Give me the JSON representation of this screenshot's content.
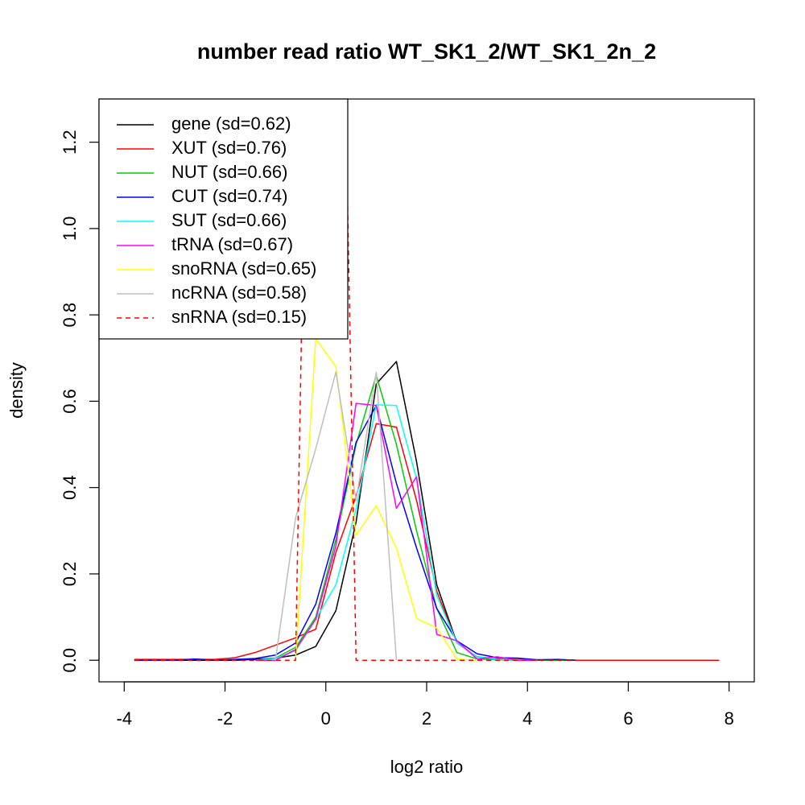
{
  "chart_data": {
    "type": "line",
    "title": "number read ratio WT_SK1_2/WT_SK1_2n_2",
    "xlabel": "log2 ratio",
    "ylabel": "density",
    "xlim": [
      -4.5,
      8.5
    ],
    "ylim": [
      -0.05,
      1.3
    ],
    "xticks": [
      -4,
      -2,
      0,
      2,
      4,
      6,
      8
    ],
    "yticks": [
      0.0,
      0.2,
      0.4,
      0.6,
      0.8,
      1.0,
      1.2
    ],
    "xtick_labels": [
      "-4",
      "-2",
      "0",
      "2",
      "4",
      "6",
      "8"
    ],
    "ytick_labels": [
      "0.0",
      "0.2",
      "0.4",
      "0.6",
      "0.8",
      "1.0",
      "1.2"
    ],
    "grid": false,
    "legend_position": "top-left",
    "series": [
      {
        "name": "gene (sd=0.62)",
        "color": "#000000",
        "dash": false,
        "x": [
          -3.8,
          -3.4,
          -3.0,
          -2.6,
          -2.2,
          -1.8,
          -1.4,
          -1.0,
          -0.6,
          -0.2,
          0.2,
          0.6,
          1.0,
          1.4,
          1.8,
          2.2,
          2.6,
          3.0,
          3.4,
          3.8,
          4.2,
          4.6,
          5.0,
          5.4,
          5.8,
          6.2,
          6.6,
          7.0,
          7.4,
          7.8
        ],
        "y": [
          0.0,
          0.0,
          0.0,
          0.0,
          0.0,
          0.0,
          0.002,
          0.005,
          0.012,
          0.032,
          0.115,
          0.32,
          0.64,
          0.692,
          0.46,
          0.175,
          0.04,
          0.008,
          0.002,
          0.001,
          0.0,
          0.0,
          0.0,
          0.0,
          0.0,
          0.0,
          0.0,
          0.0,
          0.0,
          0.0
        ]
      },
      {
        "name": "XUT (sd=0.76)",
        "color": "#ff0000",
        "dash": false,
        "x": [
          -3.8,
          -3.4,
          -3.0,
          -2.6,
          -2.2,
          -1.8,
          -1.4,
          -1.0,
          -0.6,
          -0.2,
          0.2,
          0.6,
          1.0,
          1.4,
          1.8,
          2.2,
          2.6,
          3.0,
          3.4,
          3.8,
          4.2,
          4.6,
          5.0,
          5.4,
          5.8,
          6.2,
          6.6,
          7.0,
          7.4,
          7.8
        ],
        "y": [
          0.002,
          0.002,
          0.002,
          0.002,
          0.002,
          0.006,
          0.018,
          0.035,
          0.052,
          0.072,
          0.25,
          0.38,
          0.548,
          0.54,
          0.37,
          0.16,
          0.04,
          0.008,
          0.003,
          0.002,
          0.001,
          0.001,
          0.0,
          0.0,
          0.0,
          0.0,
          0.0,
          0.0,
          0.0,
          0.0
        ]
      },
      {
        "name": "NUT (sd=0.66)",
        "color": "#00cd00",
        "dash": false,
        "x": [
          -1.4,
          -1.0,
          -0.6,
          -0.2,
          0.2,
          0.6,
          1.0,
          1.4,
          1.8,
          2.2,
          2.6,
          3.0,
          3.4,
          3.8,
          4.2,
          4.6,
          5.0
        ],
        "y": [
          0.0,
          0.005,
          0.03,
          0.1,
          0.28,
          0.5,
          0.66,
          0.5,
          0.3,
          0.12,
          0.018,
          0.003,
          0.001,
          0.0,
          0.0,
          0.0,
          0.0
        ]
      },
      {
        "name": "CUT (sd=0.74)",
        "color": "#0000ff",
        "dash": false,
        "x": [
          -3.8,
          -3.4,
          -3.0,
          -2.6,
          -2.2,
          -1.8,
          -1.4,
          -1.0,
          -0.6,
          -0.2,
          0.2,
          0.6,
          1.0,
          1.4,
          1.8,
          2.2,
          2.6,
          3.0,
          3.4,
          3.8,
          4.2,
          4.6,
          5.0
        ],
        "y": [
          0.0,
          0.0,
          0.0,
          0.003,
          0.0,
          0.002,
          0.004,
          0.012,
          0.04,
          0.13,
          0.295,
          0.505,
          0.59,
          0.41,
          0.26,
          0.12,
          0.045,
          0.015,
          0.006,
          0.005,
          0.001,
          0.002,
          0.0
        ]
      },
      {
        "name": "SUT (sd=0.66)",
        "color": "#00ffff",
        "dash": false,
        "x": [
          -1.4,
          -1.0,
          -0.6,
          -0.2,
          0.2,
          0.6,
          1.0,
          1.4,
          1.8,
          2.2,
          2.6,
          3.0,
          3.4,
          3.8,
          4.2
        ],
        "y": [
          0.0,
          0.004,
          0.022,
          0.095,
          0.175,
          0.35,
          0.592,
          0.59,
          0.42,
          0.15,
          0.04,
          0.008,
          0.002,
          0.001,
          0.0
        ]
      },
      {
        "name": "tRNA (sd=0.67)",
        "color": "#ff00ff",
        "dash": false,
        "x": [
          -1.4,
          -1.0,
          -0.6,
          -0.2,
          0.2,
          0.6,
          1.0,
          1.4,
          1.8,
          2.2,
          2.6,
          3.0,
          3.4,
          3.8,
          4.2
        ],
        "y": [
          0.0,
          0.0,
          0.025,
          0.095,
          0.265,
          0.595,
          0.59,
          0.352,
          0.425,
          0.06,
          0.045,
          0.003,
          0.008,
          0.0,
          0.0
        ]
      },
      {
        "name": "snoRNA (sd=0.65)",
        "color": "#ffff00",
        "dash": false,
        "x": [
          -0.6,
          -0.2,
          0.2,
          0.6,
          1.0,
          1.4,
          1.8,
          2.2,
          2.6,
          3.0
        ],
        "y": [
          0.0,
          0.745,
          0.68,
          0.29,
          0.358,
          0.26,
          0.097,
          0.075,
          0.003,
          0.0
        ]
      },
      {
        "name": "ncRNA (sd=0.58)",
        "color": "#bebebe",
        "dash": false,
        "x": [
          -1.0,
          -0.6,
          -0.2,
          0.2,
          0.6,
          1.0,
          1.4
        ],
        "y": [
          0.0,
          0.33,
          0.49,
          0.668,
          0.37,
          0.667,
          0.0
        ]
      },
      {
        "name": "snRNA (sd=0.15)",
        "color": "#ff0000",
        "dash": true,
        "x": [
          -3.8,
          -0.6,
          -0.2,
          0.2,
          0.6,
          1.0,
          7.8
        ],
        "y": [
          0.0,
          0.0,
          2.6,
          2.5,
          0.0,
          0.0,
          0.0
        ]
      }
    ]
  }
}
